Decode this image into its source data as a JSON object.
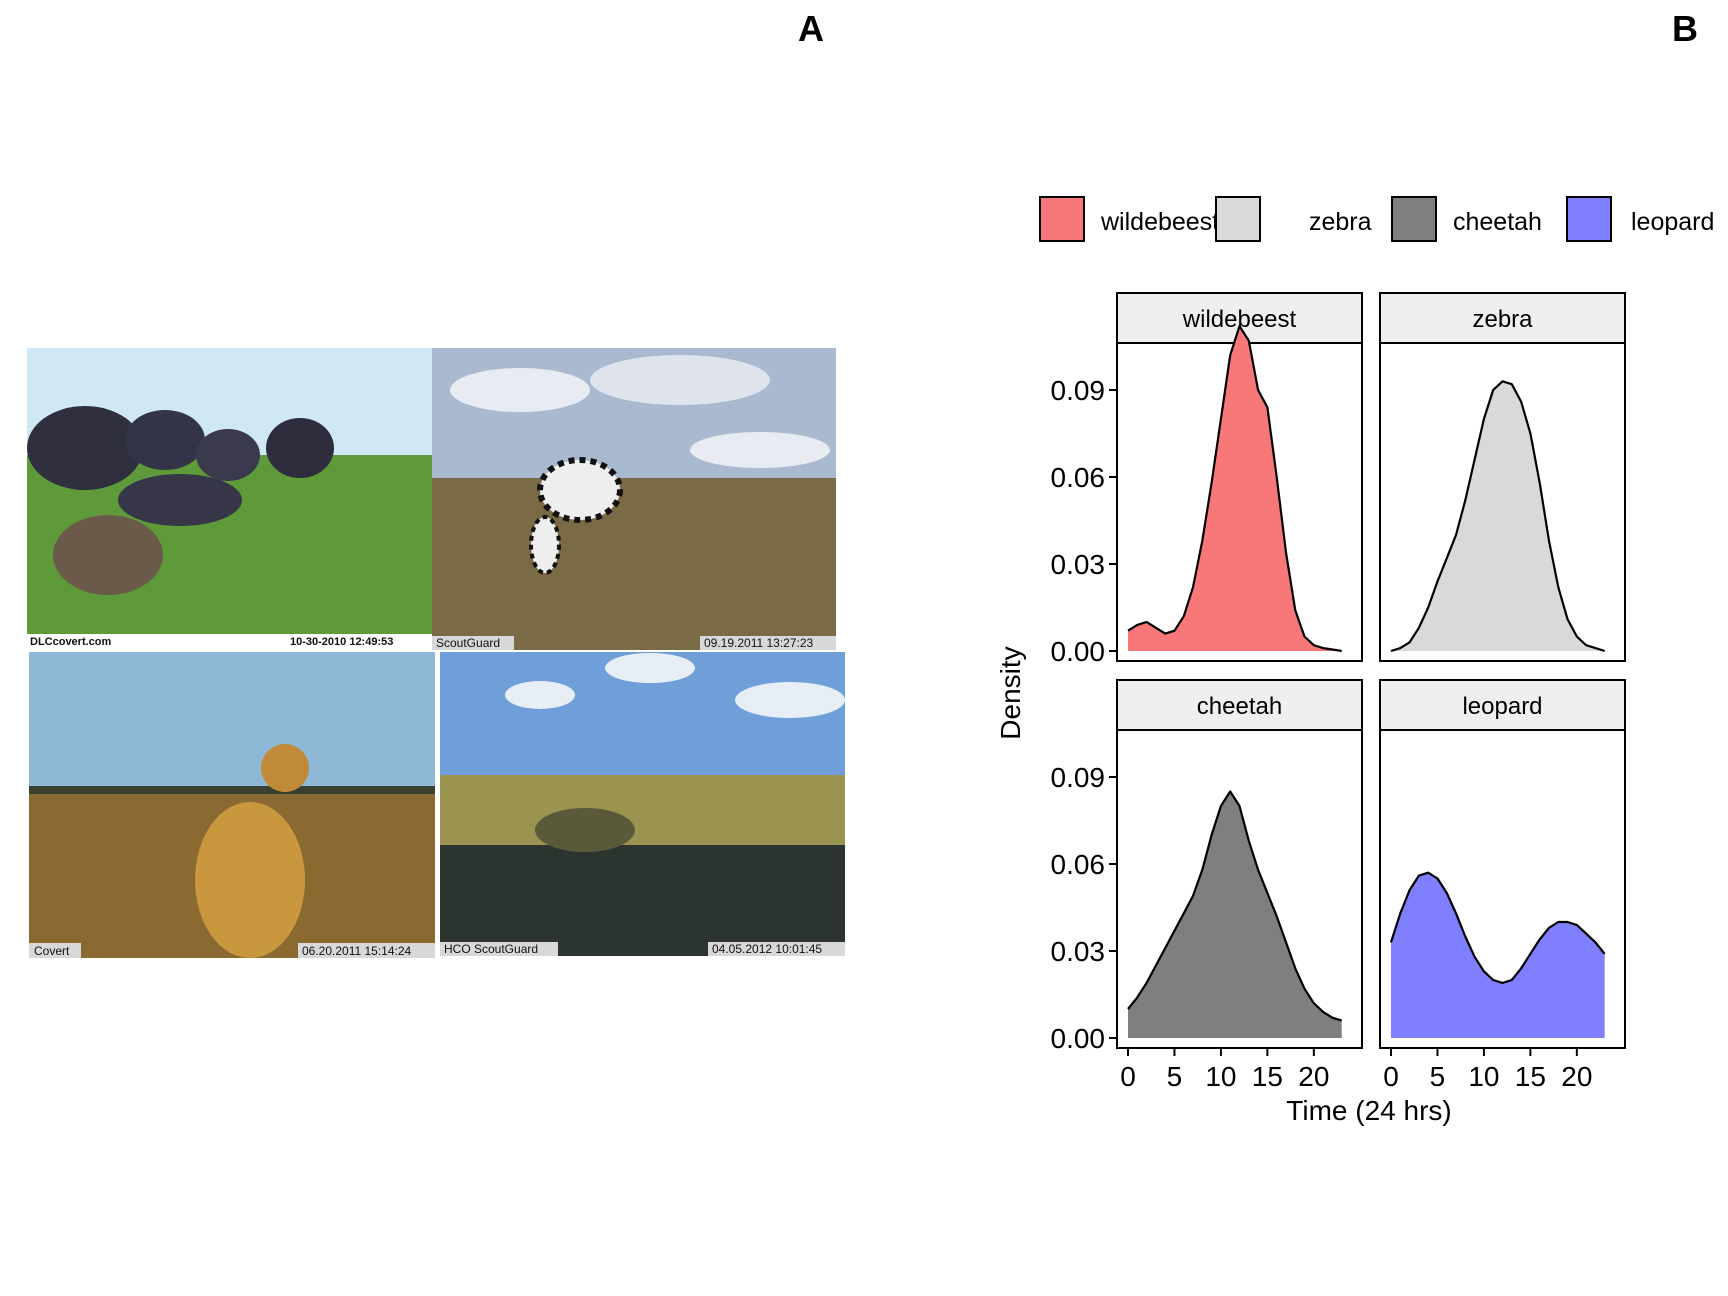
{
  "panels": {
    "a_label": "A",
    "b_label": "B"
  },
  "photos": [
    {
      "subject": "wildebeest",
      "brand": "DLCcovert.com",
      "timestamp": "10-30-2010   12:49:53",
      "colors": {
        "sky": "#cfe8f3",
        "ground": "#5f9a3a"
      }
    },
    {
      "subject": "zebra",
      "brand": "ScoutGuard",
      "timestamp": "09.19.2011 13:27:23",
      "colors": {
        "sky": "#a9b9cf",
        "ground": "#7a6a45"
      }
    },
    {
      "subject": "cheetah",
      "brand": "Covert",
      "timestamp": "06.20.2011 15:14:24",
      "colors": {
        "sky": "#8fb8d6",
        "ground": "#8a6a30"
      }
    },
    {
      "subject": "leopard",
      "brand": "HCO ScoutGuard",
      "timestamp": "04.05.2012 10:01:45",
      "colors": {
        "sky": "#6f9fd8",
        "ground": "#9a9450"
      }
    }
  ],
  "chart_data": {
    "type": "area",
    "title": "",
    "xlabel": "Time (24 hrs)",
    "ylabel": "Density",
    "xlim": [
      0,
      24
    ],
    "ylim": [
      0,
      0.1
    ],
    "x_ticks": [
      0,
      5,
      10,
      15,
      20
    ],
    "y_ticks": [
      0.0,
      0.03,
      0.06,
      0.09
    ],
    "y_tick_labels": [
      "0.00",
      "0.03",
      "0.06",
      "0.09"
    ],
    "legend": {
      "position": "top",
      "entries": [
        {
          "name": "wildebeest",
          "color": "#f8787a"
        },
        {
          "name": "zebra",
          "color": "#d9d9d9"
        },
        {
          "name": "cheetah",
          "color": "#7f7f7f"
        },
        {
          "name": "leopard",
          "color": "#7f7fff"
        }
      ]
    },
    "series": [
      {
        "name": "wildebeest",
        "color": "#f8787a",
        "x": [
          0,
          1,
          2,
          3,
          4,
          5,
          6,
          7,
          8,
          9,
          10,
          11,
          12,
          13,
          14,
          15,
          16,
          17,
          18,
          19,
          20,
          21,
          22,
          23
        ],
        "y": [
          0.007,
          0.009,
          0.01,
          0.008,
          0.006,
          0.007,
          0.012,
          0.022,
          0.038,
          0.058,
          0.08,
          0.102,
          0.112,
          0.107,
          0.09,
          0.084,
          0.06,
          0.034,
          0.014,
          0.005,
          0.002,
          0.001,
          0.0005,
          0.0
        ]
      },
      {
        "name": "zebra",
        "color": "#d9d9d9",
        "x": [
          0,
          1,
          2,
          3,
          4,
          5,
          6,
          7,
          8,
          9,
          10,
          11,
          12,
          13,
          14,
          15,
          16,
          17,
          18,
          19,
          20,
          21,
          22,
          23
        ],
        "y": [
          0.0,
          0.001,
          0.003,
          0.008,
          0.015,
          0.024,
          0.032,
          0.04,
          0.052,
          0.066,
          0.08,
          0.09,
          0.093,
          0.092,
          0.086,
          0.075,
          0.058,
          0.038,
          0.022,
          0.011,
          0.005,
          0.002,
          0.001,
          0.0
        ]
      },
      {
        "name": "cheetah",
        "color": "#7f7f7f",
        "x": [
          0,
          1,
          2,
          3,
          4,
          5,
          6,
          7,
          8,
          9,
          10,
          11,
          12,
          13,
          14,
          15,
          16,
          17,
          18,
          19,
          20,
          21,
          22,
          23
        ],
        "y": [
          0.01,
          0.014,
          0.019,
          0.025,
          0.031,
          0.037,
          0.043,
          0.049,
          0.058,
          0.07,
          0.08,
          0.085,
          0.08,
          0.068,
          0.058,
          0.05,
          0.042,
          0.033,
          0.024,
          0.017,
          0.012,
          0.009,
          0.007,
          0.006
        ]
      },
      {
        "name": "leopard",
        "color": "#7f7fff",
        "x": [
          0,
          1,
          2,
          3,
          4,
          5,
          6,
          7,
          8,
          9,
          10,
          11,
          12,
          13,
          14,
          15,
          16,
          17,
          18,
          19,
          20,
          21,
          22,
          23
        ],
        "y": [
          0.033,
          0.043,
          0.051,
          0.056,
          0.057,
          0.055,
          0.05,
          0.043,
          0.035,
          0.028,
          0.023,
          0.02,
          0.019,
          0.02,
          0.024,
          0.029,
          0.034,
          0.038,
          0.04,
          0.04,
          0.039,
          0.036,
          0.033,
          0.029
        ]
      }
    ]
  }
}
